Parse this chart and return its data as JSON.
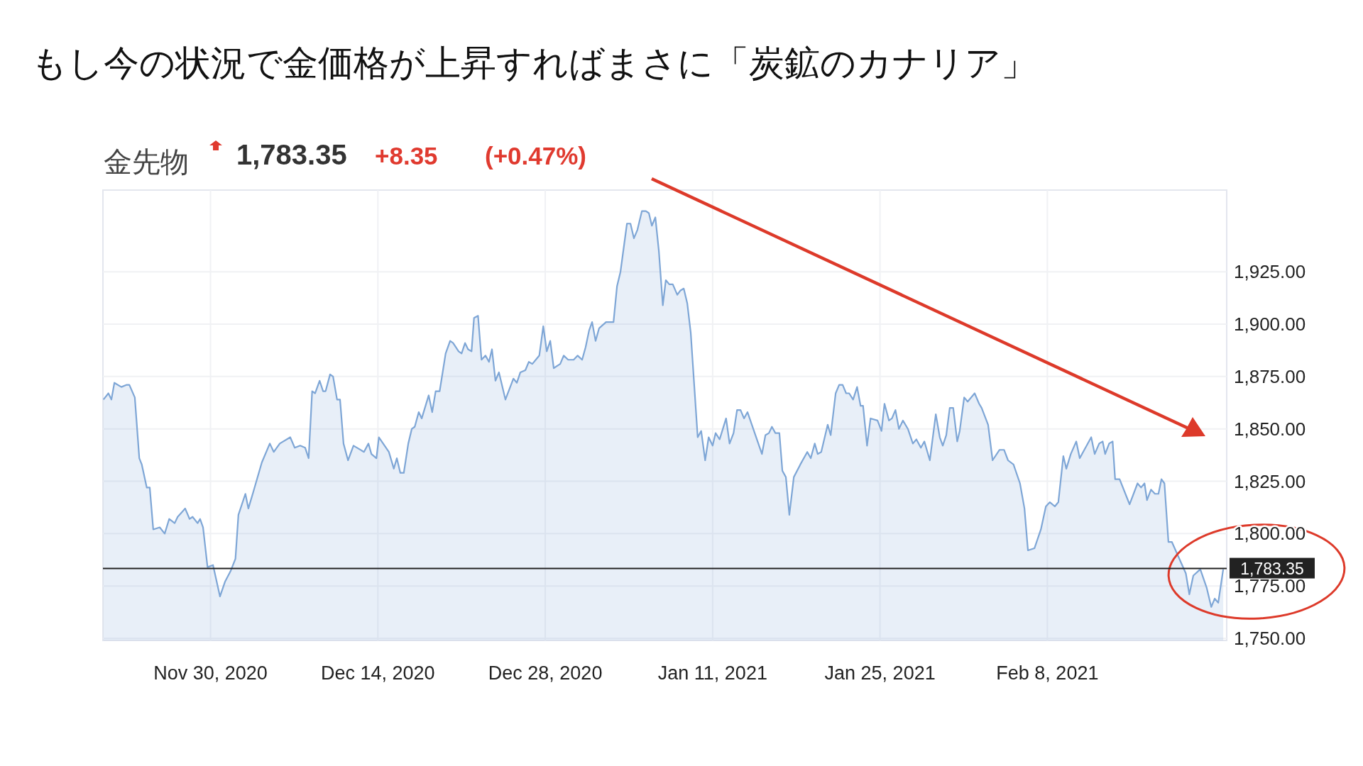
{
  "chart_data": {
    "type": "area",
    "title": "もし今の状況で金価格が上昇すればまさに「炭鉱のカナリア」",
    "subtitle": "金先物",
    "annotations": [
      "1,783.35",
      "+8.35",
      "(+0.47%)"
    ],
    "xlim": [
      "2020-11-21T00:00",
      "2021-02-23T00:00"
    ],
    "xticks": [
      {
        "value": "2020-11-30",
        "label": "Nov 30, 2020"
      },
      {
        "value": "2020-12-14",
        "label": "Dec 14, 2020"
      },
      {
        "value": "2020-12-28",
        "label": "Dec 28, 2020"
      },
      {
        "value": "2021-01-11",
        "label": "Jan 11, 2021"
      },
      {
        "value": "2021-01-25",
        "label": "Jan 25, 2021"
      },
      {
        "value": "2021-02-08",
        "label": "Feb 8, 2021"
      }
    ],
    "ylim": [
      1749,
      1964
    ],
    "yticks": [
      {
        "value": 1750,
        "label": "1,750.00"
      },
      {
        "value": 1775,
        "label": "1,775.00"
      },
      {
        "value": 1800,
        "label": "1,800.00"
      },
      {
        "value": 1825,
        "label": "1,825.00"
      },
      {
        "value": 1850,
        "label": "1,850.00"
      },
      {
        "value": 1875,
        "label": "1,875.00"
      },
      {
        "value": 1900,
        "label": "1,900.00"
      },
      {
        "value": 1925,
        "label": "1,925.00"
      }
    ],
    "grid": true,
    "ref_lines": [
      {
        "axis": "y",
        "value": 1783.35,
        "label": "1,783.35",
        "color": "#222222"
      }
    ],
    "series": [
      {
        "color": "#7ea6d6",
        "x": [
          "2020-11-21T01:00",
          "2020-11-21T11:00",
          "2020-11-21T17:00",
          "2020-11-21T23:00",
          "2020-11-22T13:00",
          "2020-11-22T23:00",
          "2020-11-23T05:00",
          "2020-11-23T16:00",
          "2020-11-24T01:00",
          "2020-11-24T06:00",
          "2020-11-24T16:00",
          "2020-11-24T22:00",
          "2020-11-25T05:00",
          "2020-11-25T18:00",
          "2020-11-26T04:00",
          "2020-11-26T13:00",
          "2020-11-27T00:00",
          "2020-11-27T06:00",
          "2020-11-27T21:00",
          "2020-11-28T06:00",
          "2020-11-28T12:00",
          "2020-11-28T22:00",
          "2020-11-29T03:00",
          "2020-11-29T09:00",
          "2020-11-29T18:00",
          "2020-11-30T05:00",
          "2020-11-30T19:00",
          "2020-12-01T05:00",
          "2020-12-01T16:00",
          "2020-12-02T02:00",
          "2020-12-02T08:00",
          "2020-12-02T22:00",
          "2020-12-03T04:00",
          "2020-12-03T14:00",
          "2020-12-04T07:00",
          "2020-12-04T23:00",
          "2020-12-05T07:00",
          "2020-12-05T19:00",
          "2020-12-06T16:00",
          "2020-12-07T01:00",
          "2020-12-07T12:00",
          "2020-12-07T22:00",
          "2020-12-08T05:00",
          "2020-12-08T12:00",
          "2020-12-08T18:00",
          "2020-12-09T03:00",
          "2020-12-09T10:00",
          "2020-12-09T15:00",
          "2020-12-10T00:00",
          "2020-12-10T06:00",
          "2020-12-10T14:00",
          "2020-12-10T20:00",
          "2020-12-11T03:00",
          "2020-12-11T12:00",
          "2020-12-11T23:00",
          "2020-12-12T20:00",
          "2020-12-13T05:00",
          "2020-12-13T11:00",
          "2020-12-13T21:00",
          "2020-12-14T02:00",
          "2020-12-14T22:00",
          "2020-12-15T08:00",
          "2020-12-15T14:00",
          "2020-12-15T21:00",
          "2020-12-16T04:00",
          "2020-12-16T13:00",
          "2020-12-16T20:00",
          "2020-12-17T02:00",
          "2020-12-17T10:00",
          "2020-12-17T16:00",
          "2020-12-18T06:00",
          "2020-12-18T13:00",
          "2020-12-18T20:00",
          "2020-12-19T04:00",
          "2020-12-19T16:00",
          "2020-12-20T01:00",
          "2020-12-20T07:00",
          "2020-12-20T18:00",
          "2020-12-21T00:00",
          "2020-12-21T07:00",
          "2020-12-21T13:00",
          "2020-12-21T20:00",
          "2020-12-22T01:00",
          "2020-12-22T09:00",
          "2020-12-22T16:00",
          "2020-12-23T00:00",
          "2020-12-23T07:00",
          "2020-12-23T13:00",
          "2020-12-23T20:00",
          "2020-12-24T03:00",
          "2020-12-24T16:00",
          "2020-12-25T08:00",
          "2020-12-25T15:00",
          "2020-12-25T22:00",
          "2020-12-26T08:00",
          "2020-12-26T15:00",
          "2020-12-26T22:00",
          "2020-12-27T12:00",
          "2020-12-27T20:00",
          "2020-12-28T03:00",
          "2020-12-28T10:00",
          "2020-12-28T17:00",
          "2020-12-29T06:00",
          "2020-12-29T13:00",
          "2020-12-29T22:00",
          "2020-12-30T09:00",
          "2020-12-30T17:00",
          "2020-12-31T02:00",
          "2020-12-31T09:00",
          "2020-12-31T16:00",
          "2020-12-31T22:00",
          "2021-01-01T05:00",
          "2021-01-01T12:00",
          "2021-01-02T02:00",
          "2021-01-02T17:00",
          "2021-01-03T00:00",
          "2021-01-03T07:00",
          "2021-01-03T20:00",
          "2021-01-04T03:00",
          "2021-01-04T10:00",
          "2021-01-04T17:00",
          "2021-01-05T02:00",
          "2021-01-05T10:00",
          "2021-01-05T16:00",
          "2021-01-05T22:00",
          "2021-01-06T05:00",
          "2021-01-06T12:00",
          "2021-01-06T20:00",
          "2021-01-07T02:00",
          "2021-01-07T09:00",
          "2021-01-07T16:00",
          "2021-01-08T01:00",
          "2021-01-08T07:00",
          "2021-01-08T14:00",
          "2021-01-08T21:00",
          "2021-01-09T04:00",
          "2021-01-09T18:00",
          "2021-01-10T01:00",
          "2021-01-10T09:00",
          "2021-01-10T16:00",
          "2021-01-11T00:00",
          "2021-01-11T06:00",
          "2021-01-11T14:00",
          "2021-01-12T03:00",
          "2021-01-12T10:00",
          "2021-01-12T18:00",
          "2021-01-13T01:00",
          "2021-01-13T08:00",
          "2021-01-13T15:00",
          "2021-01-13T22:00",
          "2021-01-15T03:00",
          "2021-01-15T10:00",
          "2021-01-15T17:00",
          "2021-01-15T23:00",
          "2021-01-16T06:00",
          "2021-01-16T14:00",
          "2021-01-16T20:00",
          "2021-01-17T03:00",
          "2021-01-17T10:00",
          "2021-01-17T19:00",
          "2021-01-18T08:00",
          "2021-01-18T22:00",
          "2021-01-19T05:00",
          "2021-01-19T13:00",
          "2021-01-19T19:00",
          "2021-01-20T02:00",
          "2021-01-20T15:00",
          "2021-01-20T21:00",
          "2021-01-21T07:00",
          "2021-01-21T14:00",
          "2021-01-21T21:00",
          "2021-01-22T04:00",
          "2021-01-22T10:00",
          "2021-01-22T18:00",
          "2021-01-23T02:00",
          "2021-01-23T09:00",
          "2021-01-23T14:00",
          "2021-01-23T22:00",
          "2021-01-24T05:00",
          "2021-01-24T19:00",
          "2021-01-25T03:00",
          "2021-01-25T09:00",
          "2021-01-25T18:00",
          "2021-01-26T00:00",
          "2021-01-26T07:00",
          "2021-01-26T14:00",
          "2021-01-26T22:00",
          "2021-01-27T08:00",
          "2021-01-27T18:00",
          "2021-01-28T01:00",
          "2021-01-28T10:00",
          "2021-01-28T17:00",
          "2021-01-29T04:00",
          "2021-01-29T16:00",
          "2021-01-30T00:00",
          "2021-01-30T06:00",
          "2021-01-30T13:00",
          "2021-01-30T20:00",
          "2021-01-31T03:00",
          "2021-01-31T11:00",
          "2021-01-31T16:00",
          "2021-02-01T01:00",
          "2021-02-01T08:00",
          "2021-02-01T22:00",
          "2021-02-02T07:00",
          "2021-02-02T12:00",
          "2021-02-03T01:00",
          "2021-02-03T10:00",
          "2021-02-04T00:00",
          "2021-02-04T09:00",
          "2021-02-04T17:00",
          "2021-02-05T04:00",
          "2021-02-05T17:00",
          "2021-02-06T02:00",
          "2021-02-06T09:00",
          "2021-02-06T22:00",
          "2021-02-07T11:00",
          "2021-02-07T21:00",
          "2021-02-08T05:00",
          "2021-02-08T15:00",
          "2021-02-08T22:00",
          "2021-02-09T08:00",
          "2021-02-09T14:00",
          "2021-02-09T23:00",
          "2021-02-10T10:00",
          "2021-02-10T17:00",
          "2021-02-11T16:00",
          "2021-02-11T23:00",
          "2021-02-12T08:00",
          "2021-02-12T15:00",
          "2021-02-12T20:00",
          "2021-02-13T04:00",
          "2021-02-13T11:00",
          "2021-02-13T16:00",
          "2021-02-14T01:00",
          "2021-02-14T21:00",
          "2021-02-15T13:00",
          "2021-02-15T20:00",
          "2021-02-16T03:00",
          "2021-02-16T08:00",
          "2021-02-16T16:00",
          "2021-02-17T00:00",
          "2021-02-17T07:00",
          "2021-02-17T13:00",
          "2021-02-17T19:00",
          "2021-02-18T03:00",
          "2021-02-18T10:00",
          "2021-02-19T14:00",
          "2021-02-19T21:00",
          "2021-02-20T05:00",
          "2021-02-20T19:00",
          "2021-02-21T08:00",
          "2021-02-21T17:00",
          "2021-02-22T00:00",
          "2021-02-22T07:00",
          "2021-02-22T17:00"
        ],
        "values": [
          1864,
          1867,
          1864,
          1872,
          1870,
          1871,
          1871,
          1865,
          1836,
          1833,
          1822,
          1822,
          1802,
          1803,
          1800,
          1807,
          1805,
          1808,
          1812,
          1807,
          1808,
          1805,
          1807,
          1803,
          1784,
          1785,
          1770,
          1777,
          1782,
          1788,
          1809,
          1819,
          1812,
          1820,
          1834,
          1843,
          1839,
          1843,
          1846,
          1841,
          1842,
          1841,
          1836,
          1868,
          1867,
          1873,
          1868,
          1868,
          1876,
          1875,
          1864,
          1864,
          1843,
          1835,
          1842,
          1839,
          1843,
          1838,
          1836,
          1846,
          1839,
          1831,
          1836,
          1829,
          1829,
          1843,
          1850,
          1851,
          1858,
          1855,
          1866,
          1858,
          1868,
          1868,
          1886,
          1892,
          1891,
          1887,
          1886,
          1891,
          1888,
          1887,
          1903,
          1904,
          1883,
          1885,
          1882,
          1888,
          1873,
          1877,
          1864,
          1874,
          1872,
          1877,
          1878,
          1882,
          1881,
          1885,
          1899,
          1887,
          1892,
          1879,
          1881,
          1885,
          1883,
          1883,
          1885,
          1883,
          1889,
          1897,
          1901,
          1892,
          1898,
          1901,
          1901,
          1918,
          1925,
          1948,
          1948,
          1941,
          1945,
          1954,
          1954,
          1953,
          1947,
          1951,
          1935,
          1909,
          1921,
          1919,
          1919,
          1914,
          1916,
          1917,
          1910,
          1896,
          1846,
          1849,
          1835,
          1846,
          1842,
          1848,
          1845,
          1855,
          1843,
          1848,
          1859,
          1859,
          1855,
          1858,
          1838,
          1847,
          1848,
          1851,
          1848,
          1848,
          1830,
          1827,
          1809,
          1827,
          1833,
          1839,
          1836,
          1843,
          1838,
          1839,
          1852,
          1847,
          1867,
          1871,
          1871,
          1867,
          1867,
          1864,
          1870,
          1861,
          1861,
          1842,
          1855,
          1854,
          1849,
          1862,
          1854,
          1855,
          1859,
          1850,
          1854,
          1850,
          1843,
          1845,
          1841,
          1844,
          1835,
          1857,
          1846,
          1842,
          1847,
          1860,
          1860,
          1844,
          1849,
          1865,
          1863,
          1867,
          1862,
          1860,
          1852,
          1835,
          1840,
          1840,
          1835,
          1833,
          1824,
          1812,
          1792,
          1793,
          1802,
          1813,
          1815,
          1813,
          1815,
          1837,
          1831,
          1838,
          1844,
          1836,
          1846,
          1838,
          1843,
          1844,
          1838,
          1843,
          1844,
          1826,
          1826,
          1814,
          1824,
          1822,
          1824,
          1816,
          1821,
          1819,
          1819,
          1826,
          1824,
          1796,
          1796,
          1781,
          1771,
          1780,
          1783,
          1774,
          1765,
          1769,
          1767,
          1783
        ]
      }
    ]
  }
}
